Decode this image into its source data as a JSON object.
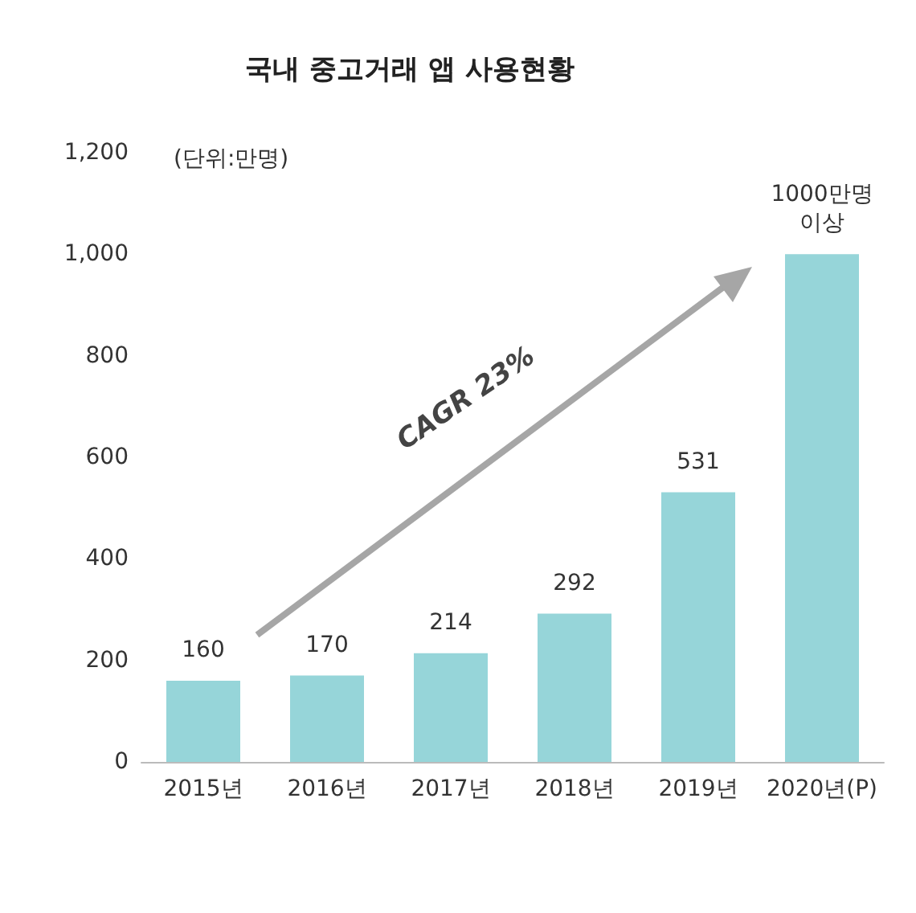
{
  "chart_data": {
    "type": "bar",
    "title": "국내 중고거래 앱 사용현황",
    "categories": [
      "2015년",
      "2016년",
      "2017년",
      "2018년",
      "2019년",
      "2020년(P)"
    ],
    "values": [
      160,
      170,
      214,
      292,
      531,
      1000
    ],
    "value_labels": [
      "160",
      "170",
      "214",
      "292",
      "531",
      "1000만명\n이상"
    ],
    "color": "#96d5d9",
    "ylim": [
      0,
      1200
    ],
    "yticks": [
      {
        "value": 0,
        "label": "0"
      },
      {
        "value": 200,
        "label": "200"
      },
      {
        "value": 400,
        "label": "400"
      },
      {
        "value": 600,
        "label": "600"
      },
      {
        "value": 800,
        "label": "800"
      },
      {
        "value": 1000,
        "label": "1,000"
      },
      {
        "value": 1200,
        "label": "1,200"
      }
    ],
    "grid": false,
    "annotations": [
      "(단위:만명)",
      "CAGR 23%"
    ]
  }
}
